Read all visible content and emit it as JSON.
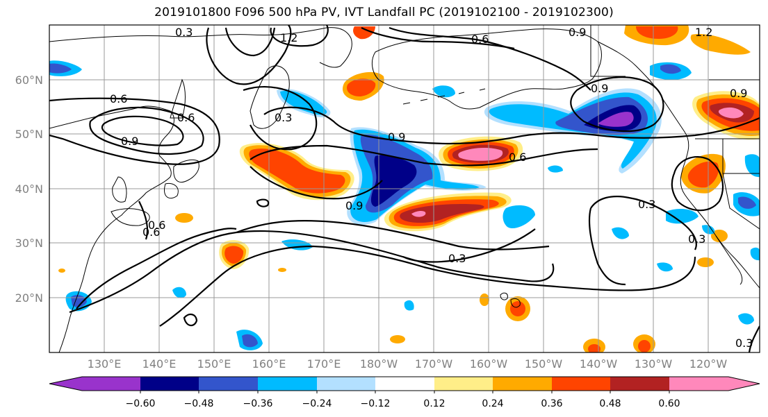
{
  "title": "2019101800 F096 500 hPa PV, IVT Landfall PC (2019102100 - 2019102300)",
  "map": {
    "lat_labels": [
      "60°N",
      "50°N",
      "40°N",
      "30°N",
      "20°N"
    ],
    "lon_labels": [
      "130°E",
      "140°E",
      "150°E",
      "160°E",
      "170°E",
      "180°W",
      "170°W",
      "160°W",
      "150°W",
      "140°W",
      "130°W",
      "120°W"
    ],
    "contour_labels": [
      "0.3",
      "1.2",
      "0.6",
      "0.9",
      "0.6",
      "0.9",
      "0.6",
      "0.9",
      "1.2",
      "0.9",
      "0.3",
      "0.9",
      "0.9",
      "0.6",
      "0.6",
      "0.3",
      "0.3",
      "0.3",
      "0.6",
      "0.3"
    ]
  },
  "colorbar": {
    "colors": [
      "#9933cc",
      "#000088",
      "#3355cc",
      "#00bbff",
      "#b3e0ff",
      "#ffffff",
      "#ffee88",
      "#ffaa00",
      "#ff4400",
      "#b22222",
      "#ff88bb"
    ],
    "tick_labels": [
      "−0.60",
      "−0.48",
      "−0.36",
      "−0.24",
      "−0.12",
      "0.12",
      "0.24",
      "0.36",
      "0.48",
      "0.60"
    ]
  }
}
